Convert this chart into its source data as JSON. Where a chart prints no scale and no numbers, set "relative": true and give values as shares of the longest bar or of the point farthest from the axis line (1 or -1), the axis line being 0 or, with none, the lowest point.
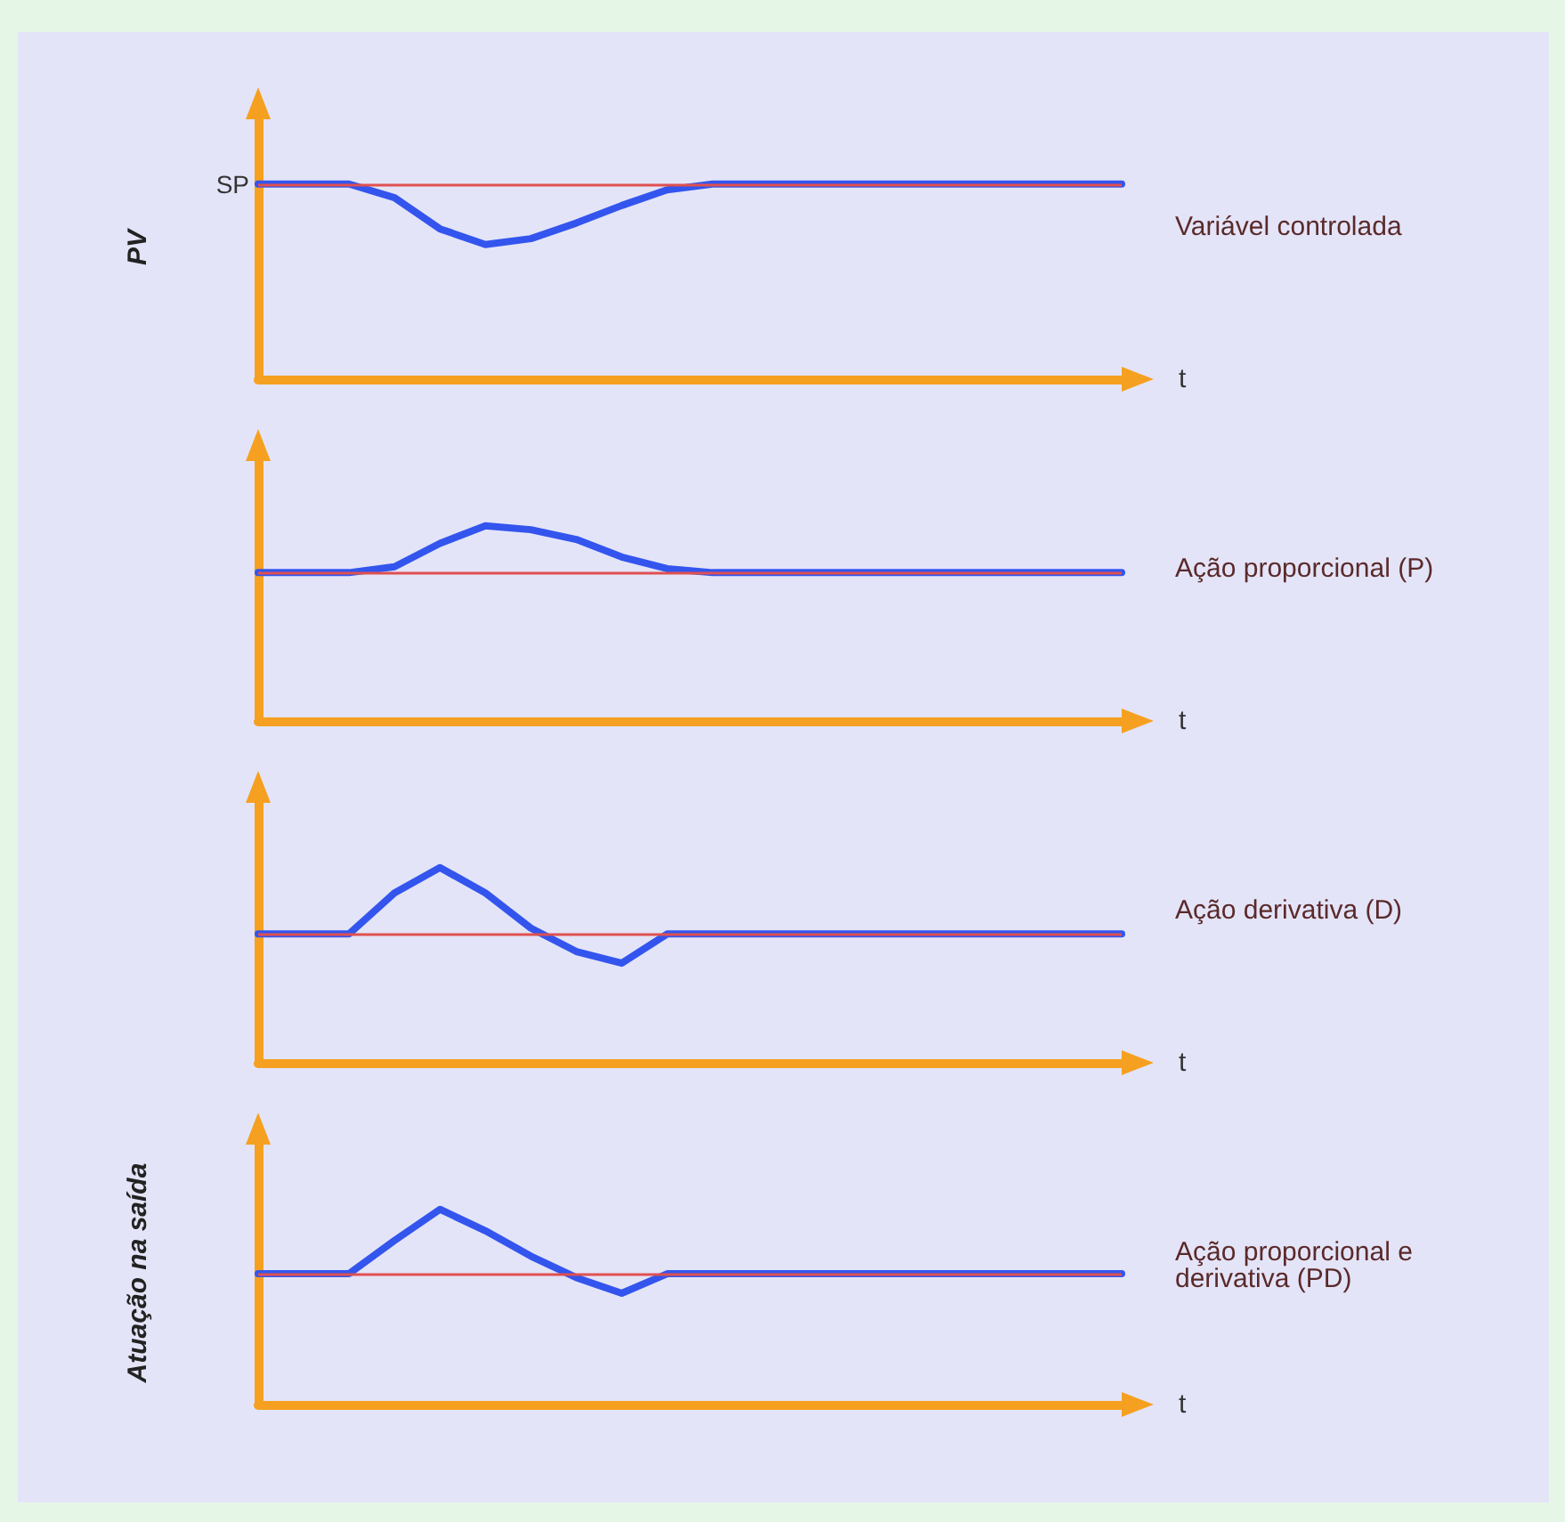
{
  "chart_data": [
    {
      "type": "line",
      "relative": true,
      "ylabel": "PV",
      "xlabel": "t",
      "categories": [
        null,
        null,
        null,
        null,
        null,
        null,
        null,
        null,
        null,
        null,
        null,
        null,
        null,
        null,
        null,
        null,
        null,
        null,
        null,
        null
      ],
      "series": [
        {
          "color": "#3355ee",
          "values": [
            1,
            1,
            1,
            0.93,
            0.77,
            0.69,
            0.72,
            0.8,
            0.89,
            0.97,
            1,
            1,
            1,
            1,
            1,
            1,
            1,
            1,
            1,
            1
          ]
        }
      ],
      "ref_lines": [
        {
          "axis": "y",
          "value": 1,
          "label": "SP",
          "color": "#e05050"
        }
      ],
      "annotations": [
        "Variável controlada"
      ],
      "grid": false,
      "marker": "none"
    },
    {
      "type": "line",
      "relative": true,
      "xlabel": "t",
      "categories": [
        null,
        null,
        null,
        null,
        null,
        null,
        null,
        null,
        null,
        null,
        null,
        null,
        null,
        null,
        null,
        null,
        null,
        null,
        null,
        null
      ],
      "series": [
        {
          "color": "#3355ee",
          "values": [
            0.76,
            0.76,
            0.76,
            0.79,
            0.91,
            1,
            0.98,
            0.93,
            0.84,
            0.78,
            0.76,
            0.76,
            0.76,
            0.76,
            0.76,
            0.76,
            0.76,
            0.76,
            0.76,
            0.76
          ]
        }
      ],
      "ref_lines": [
        {
          "axis": "y",
          "value": 0.76,
          "color": "#e05050"
        }
      ],
      "annotations": [
        "Ação proporcional (P)"
      ],
      "grid": false,
      "marker": "none"
    },
    {
      "type": "line",
      "relative": true,
      "xlabel": "t",
      "categories": [
        null,
        null,
        null,
        null,
        null,
        null,
        null,
        null,
        null,
        null,
        null,
        null,
        null,
        null,
        null,
        null,
        null,
        null,
        null,
        null
      ],
      "series": [
        {
          "color": "#3355ee",
          "values": [
            0.66,
            0.66,
            0.66,
            0.87,
            1,
            0.87,
            0.69,
            0.57,
            0.51,
            0.66,
            0.66,
            0.66,
            0.66,
            0.66,
            0.66,
            0.66,
            0.66,
            0.66,
            0.66,
            0.66
          ]
        }
      ],
      "ref_lines": [
        {
          "axis": "y",
          "value": 0.66,
          "color": "#e05050"
        }
      ],
      "annotations": [
        "Ação derivativa (D)"
      ],
      "grid": false,
      "marker": "none"
    },
    {
      "type": "line",
      "relative": true,
      "ylabel": "Atuação na saída",
      "xlabel": "t",
      "categories": [
        null,
        null,
        null,
        null,
        null,
        null,
        null,
        null,
        null,
        null,
        null,
        null,
        null,
        null,
        null,
        null,
        null,
        null,
        null,
        null
      ],
      "series": [
        {
          "color": "#3355ee",
          "values": [
            0.67,
            0.67,
            0.67,
            0.84,
            1,
            0.89,
            0.76,
            0.65,
            0.57,
            0.67,
            0.67,
            0.67,
            0.67,
            0.67,
            0.67,
            0.67,
            0.67,
            0.67,
            0.67,
            0.67
          ]
        }
      ],
      "ref_lines": [
        {
          "axis": "y",
          "value": 0.67,
          "color": "#e05050"
        }
      ],
      "annotations": [
        "Ação proporcional e derivativa (PD)"
      ],
      "grid": false,
      "marker": "none"
    }
  ]
}
